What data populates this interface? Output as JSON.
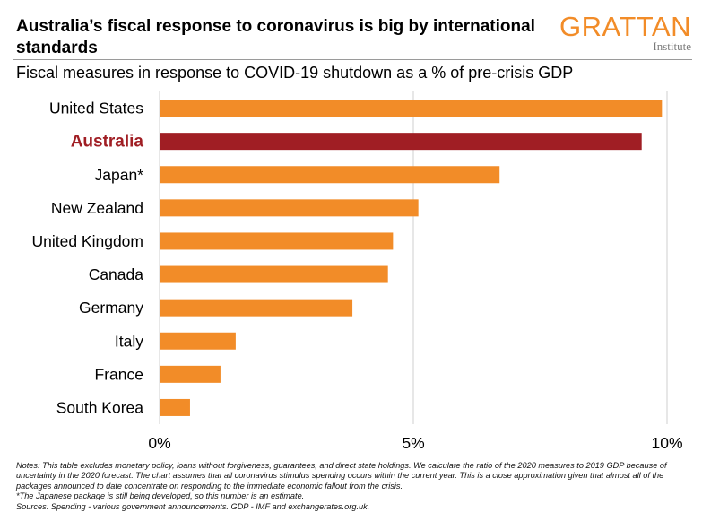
{
  "header": {
    "title": "Australia’s fiscal response to coronavirus is big by international standards",
    "subtitle": "Fiscal measures in response to COVID-19 shutdown as a % of pre-crisis GDP",
    "logo_word": "GRATTAN",
    "logo_sub": "Institute"
  },
  "chart_data": {
    "type": "bar",
    "orientation": "horizontal",
    "categories": [
      "United States",
      "Australia",
      "Japan*",
      "New Zealand",
      "United Kingdom",
      "Canada",
      "Germany",
      "Italy",
      "France",
      "South Korea"
    ],
    "values": [
      9.9,
      9.5,
      6.7,
      5.1,
      4.6,
      4.5,
      3.8,
      1.5,
      1.2,
      0.6
    ],
    "highlight": "Australia",
    "xlim": [
      0,
      10
    ],
    "xticks": [
      0,
      5,
      10
    ],
    "xtick_labels": [
      "0%",
      "5%",
      "10%"
    ],
    "grid": true,
    "colors": {
      "bar": "#f28c28",
      "highlight": "#a01e24",
      "grid": "#cfcfcf",
      "label": "#000000",
      "highlight_label": "#a01e24"
    }
  },
  "notes": {
    "line1": "Notes: This table excludes monetary policy, loans without forgiveness, guarantees, and direct state holdings. We calculate the ratio of the 2020 measures to 2019 GDP because of uncertainty in the 2020 forecast. The chart assumes that all coronavirus stimulus spending occurs within the current year. This is a close approximation given that almost all of the packages announced to date concentrate on responding to the immediate economic fallout from the crisis.",
    "line2": "*The Japanese package is still being developed, so this number is an estimate.",
    "line3": "Sources: Spending - various government announcements. GDP - IMF and exchangerates.org.uk."
  }
}
